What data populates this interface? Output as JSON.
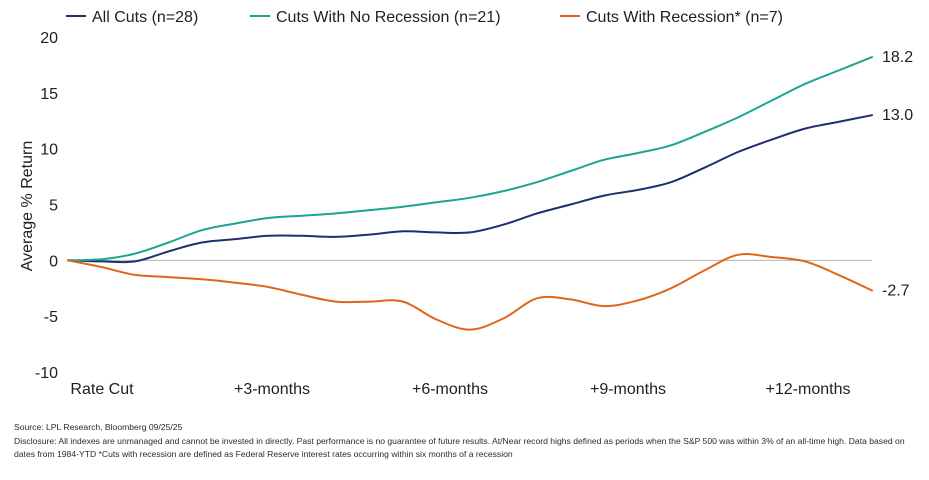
{
  "chart_data": {
    "type": "line",
    "title": "",
    "xlabel": "",
    "ylabel": "Average % Return",
    "ylim": [
      -10,
      20
    ],
    "yticks": [
      -10,
      -5,
      0,
      5,
      10,
      15,
      20
    ],
    "x_tick_labels": [
      "Rate Cut",
      "+3-months",
      "+6-months",
      "+9-months",
      "+12-months"
    ],
    "x_range": [
      0,
      12
    ],
    "legend_position": "top",
    "series": [
      {
        "name": "All Cuts (n=28)",
        "color": "#1d2f6f",
        "end_label": "13.0",
        "x": [
          0,
          0.5,
          1,
          1.5,
          2,
          2.5,
          3,
          3.5,
          4,
          4.5,
          5,
          5.5,
          6,
          6.5,
          7,
          7.5,
          8,
          8.5,
          9,
          9.5,
          10,
          10.5,
          11,
          11.5,
          12
        ],
        "values": [
          0,
          -0.1,
          -0.1,
          0.8,
          1.6,
          1.9,
          2.2,
          2.2,
          2.1,
          2.3,
          2.6,
          2.5,
          2.5,
          3.2,
          4.2,
          5.0,
          5.8,
          6.3,
          7.0,
          8.3,
          9.7,
          10.8,
          11.8,
          12.4,
          13.0
        ]
      },
      {
        "name": "Cuts With No Recession (n=21)",
        "color": "#1aa68f",
        "end_label": "18.2",
        "x": [
          0,
          0.5,
          1,
          1.5,
          2,
          2.5,
          3,
          3.5,
          4,
          4.5,
          5,
          5.5,
          6,
          6.5,
          7,
          7.5,
          8,
          8.5,
          9,
          9.5,
          10,
          10.5,
          11,
          11.5,
          12
        ],
        "values": [
          0,
          0.1,
          0.6,
          1.6,
          2.7,
          3.3,
          3.8,
          4.0,
          4.2,
          4.5,
          4.8,
          5.2,
          5.6,
          6.2,
          7.0,
          8.0,
          9.0,
          9.6,
          10.3,
          11.5,
          12.8,
          14.3,
          15.8,
          17.0,
          18.2
        ]
      },
      {
        "name": "Cuts With Recession* (n=7)",
        "color": "#e0661c",
        "end_label": "-2.7",
        "x": [
          0,
          0.5,
          1,
          1.5,
          2,
          2.5,
          3,
          3.5,
          4,
          4.5,
          5,
          5.5,
          6,
          6.5,
          7,
          7.5,
          8,
          8.5,
          9,
          9.5,
          10,
          10.5,
          11,
          11.5,
          12
        ],
        "values": [
          0,
          -0.6,
          -1.3,
          -1.5,
          -1.7,
          -2.0,
          -2.4,
          -3.1,
          -3.7,
          -3.7,
          -3.7,
          -5.3,
          -6.2,
          -5.2,
          -3.4,
          -3.5,
          -4.1,
          -3.6,
          -2.5,
          -0.9,
          0.5,
          0.3,
          -0.1,
          -1.3,
          -2.7
        ]
      }
    ]
  },
  "footer": {
    "source": "Source: LPL Research, Bloomberg 09/25/25",
    "disclosure": "Disclosure: All indexes are unmanaged and cannot be invested in directly. Past performance is no guarantee of future results. At/Near record highs defined as periods when the S&P 500 was within 3% of an all-time high. Data based on dates from 1984-YTD *Cuts with recession are defined as Federal Reserve interest rates occurring within six months of a recession"
  }
}
